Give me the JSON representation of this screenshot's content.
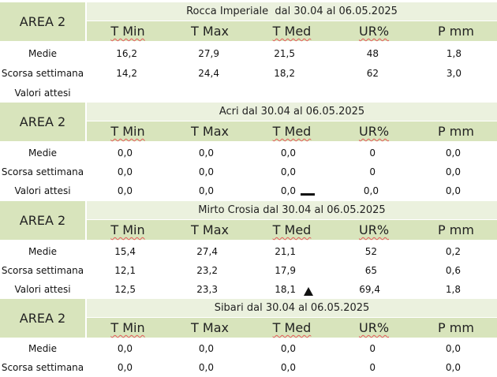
{
  "columns": [
    "T Min",
    "T Max",
    "T Med",
    "UR%",
    "P mm"
  ],
  "sections": [
    {
      "area": "AREA 2",
      "title": "Rocca Imperiale  dal 30.04 al 06.05.2025",
      "rows": [
        {
          "label": "Medie",
          "values": [
            "16,2",
            "27,9",
            "21,5",
            "48",
            "1,8"
          ]
        },
        {
          "label": "Scorsa settimana",
          "values": [
            "14,2",
            "24,4",
            "18,2",
            "62",
            "3,0"
          ]
        },
        {
          "label": "Valori attesi",
          "values": [
            "",
            "",
            "",
            "",
            ""
          ]
        }
      ]
    },
    {
      "area": "AREA 2",
      "title": "Acri dal 30.04 al 06.05.2025",
      "trend_icon": "dash-icon",
      "rows": [
        {
          "label": "Medie",
          "values": [
            "0,0",
            "0,0",
            "0,0",
            "0",
            "0,0"
          ]
        },
        {
          "label": "Scorsa settimana",
          "values": [
            "0,0",
            "0,0",
            "0,0",
            "0",
            "0,0"
          ]
        },
        {
          "label": "Valori attesi",
          "values": [
            "0,0",
            "0,0",
            "0,0",
            "0,0",
            "0,0"
          ]
        }
      ]
    },
    {
      "area": "AREA 2",
      "title": "Mirto Crosia dal 30.04 al 06.05.2025",
      "trend_icon": "up-triangle-icon",
      "rows": [
        {
          "label": "Medie",
          "values": [
            "15,4",
            "27,4",
            "21,1",
            "52",
            "0,2"
          ]
        },
        {
          "label": "Scorsa settimana",
          "values": [
            "12,1",
            "23,2",
            "17,9",
            "65",
            "0,6"
          ]
        },
        {
          "label": "Valori attesi",
          "values": [
            "12,5",
            "23,3",
            "18,1",
            "69,4",
            "1,8"
          ]
        }
      ]
    },
    {
      "area": "AREA 2",
      "title": "Sibari dal 30.04 al 06.05.2025",
      "rows": [
        {
          "label": "Medie",
          "values": [
            "0,0",
            "0,0",
            "0,0",
            "0",
            "0,0"
          ]
        },
        {
          "label": "Scorsa settimana",
          "values": [
            "0,0",
            "0,0",
            "0,0",
            "0",
            "0,0"
          ]
        }
      ]
    }
  ],
  "colors": {
    "header_dark": "#d8e4bc",
    "header_light": "#ebf1de",
    "squiggle": "#e35b5b"
  }
}
